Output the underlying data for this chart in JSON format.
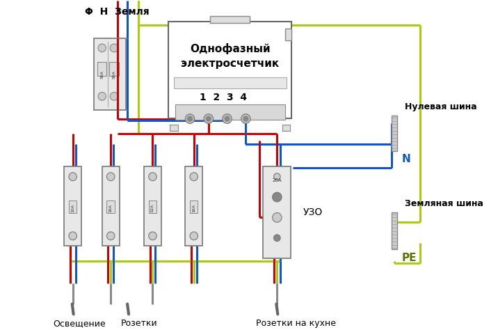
{
  "bg_color": "#ffffff",
  "wire_red": "#cc0000",
  "wire_blue": "#1155cc",
  "wire_yg": "#aacc11",
  "title_label": "Φ  Н  Земля",
  "meter_label1": "Однофазный",
  "meter_label2": "электросчетчик",
  "meter_terminals": "1  2  3  4",
  "null_bus_label": "Нулевая шина",
  "n_label": "N",
  "earth_bus_label": "Земляная шина",
  "pe_label": "PE",
  "uzo_label": "УЗО",
  "cb_labels": [
    "10A",
    "16A",
    "32A",
    "16A",
    "20A"
  ],
  "bottom_labels": [
    "Освещение",
    "Розетки",
    "Розетки на кухне"
  ],
  "input_cb_label": "50A",
  "lw": 2.2
}
